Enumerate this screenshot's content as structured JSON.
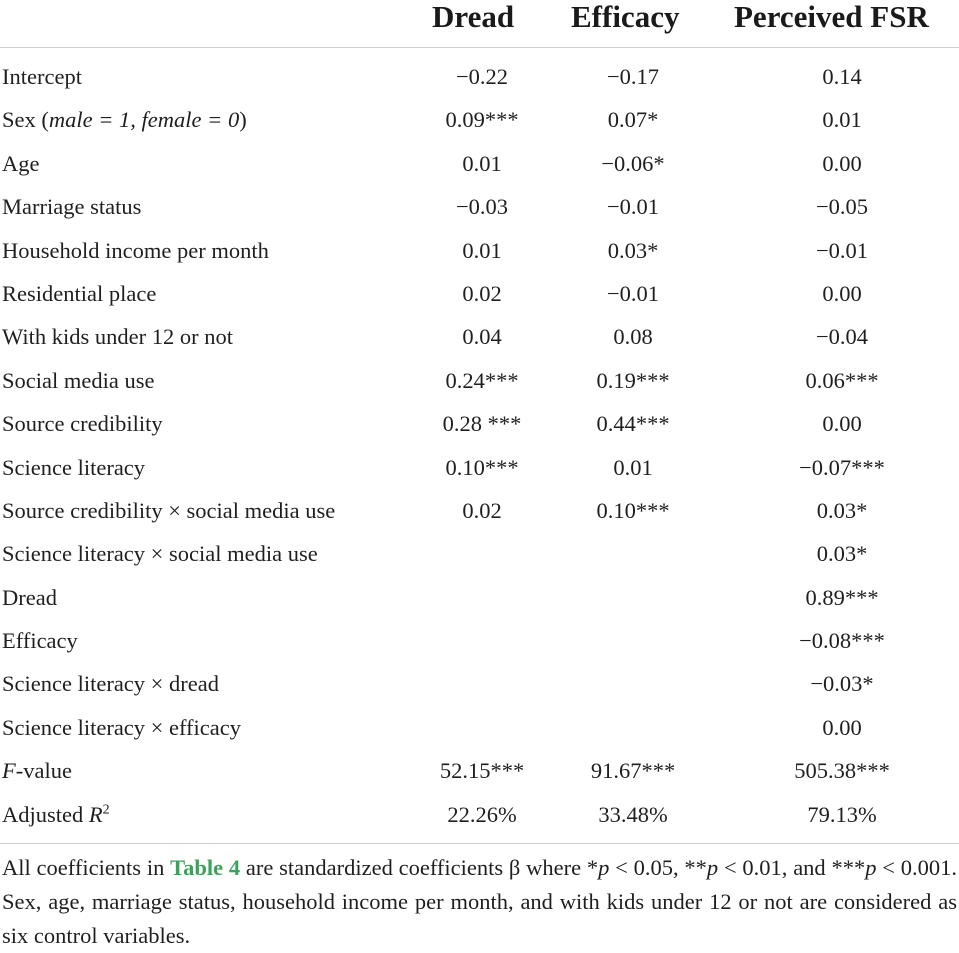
{
  "columns": {
    "dread": "Dread",
    "efficacy": "Efficacy",
    "fsr": "Perceived FSR"
  },
  "rows": [
    {
      "label": "Intercept",
      "dread": "−0.22",
      "efficacy": "−0.17",
      "fsr": "0.14"
    },
    {
      "label_plain": "Sex (",
      "label_italic": "male = 1, female = 0",
      "label_close": ")",
      "dread": "0.09***",
      "efficacy": "0.07*",
      "fsr": "0.01"
    },
    {
      "label": "Age",
      "dread": "0.01",
      "efficacy": "−0.06*",
      "fsr": "0.00"
    },
    {
      "label": "Marriage status",
      "dread": "−0.03",
      "efficacy": "−0.01",
      "fsr": "−0.05"
    },
    {
      "label": "Household income per month",
      "dread": "0.01",
      "efficacy": "0.03*",
      "fsr": "−0.01"
    },
    {
      "label": "Residential place",
      "dread": "0.02",
      "efficacy": "−0.01",
      "fsr": "0.00"
    },
    {
      "label": "With kids under 12 or not",
      "dread": "0.04",
      "efficacy": "0.08",
      "fsr": "−0.04"
    },
    {
      "label": "Social media use",
      "dread": "0.24***",
      "efficacy": "0.19***",
      "fsr": "0.06***"
    },
    {
      "label": "Source credibility",
      "dread": "0.28 ***",
      "efficacy": "0.44***",
      "fsr": "0.00"
    },
    {
      "label": "Science literacy",
      "dread": "0.10***",
      "efficacy": "0.01",
      "fsr": "−0.07***"
    },
    {
      "label": "Source credibility × social media use",
      "dread": "0.02",
      "efficacy": "0.10***",
      "fsr": "0.03*"
    },
    {
      "label": "Science literacy × social media use",
      "dread": "",
      "efficacy": "",
      "fsr": "0.03*"
    },
    {
      "label": "Dread",
      "dread": "",
      "efficacy": "",
      "fsr": "0.89***"
    },
    {
      "label": "Efficacy",
      "dread": "",
      "efficacy": "",
      "fsr": "−0.08***"
    },
    {
      "label": "Science literacy × dread",
      "dread": "",
      "efficacy": "",
      "fsr": "−0.03*"
    },
    {
      "label": "Science literacy × efficacy",
      "dread": "",
      "efficacy": "",
      "fsr": "0.00"
    },
    {
      "label_italic": "F",
      "label_rest": "-value",
      "dread": "52.15***",
      "efficacy": "91.67***",
      "fsr": "505.38***"
    },
    {
      "label_plain": "Adjusted ",
      "label_italic": "R",
      "label_sup": "2",
      "dread": "22.26%",
      "efficacy": "33.48%",
      "fsr": "79.13%"
    }
  ],
  "note": {
    "prefix": "All coefficients in ",
    "ref": "Table 4",
    "mid": " are standardized coefficients β where *",
    "p1": "p",
    "t1": " < 0.05, **",
    "p2": "p",
    "t2": " < 0.01, and ***",
    "p3": "p",
    "t3": " < 0.001. Sex, age, marriage status, household income per month, and with kids under 12 or not are considered as six control variables."
  }
}
